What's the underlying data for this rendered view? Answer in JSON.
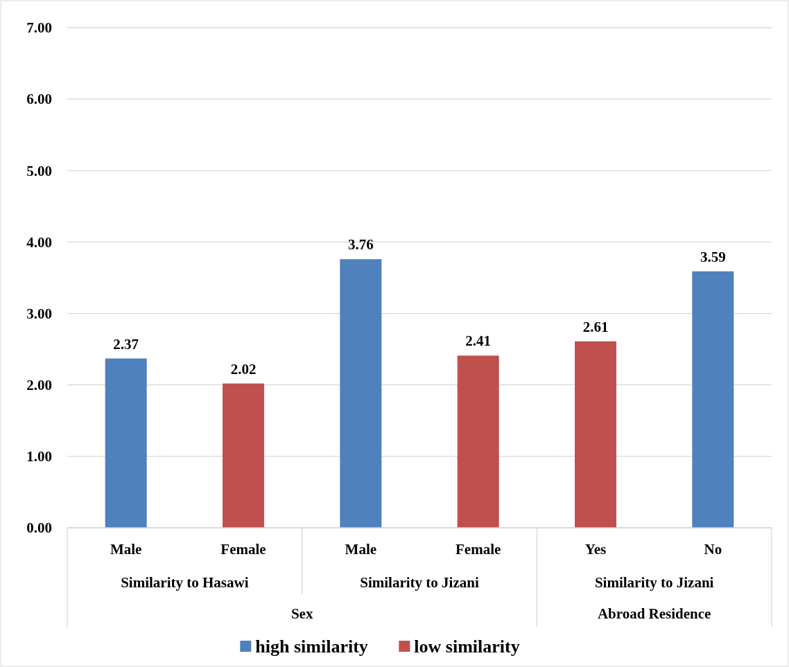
{
  "chart_data": {
    "type": "bar",
    "categories": [
      "Male",
      "Female",
      "Male",
      "Female",
      "Yes",
      "No"
    ],
    "series": [
      {
        "name": "high similarity",
        "color": "#4f81bd",
        "values": [
          2.37,
          null,
          3.76,
          null,
          null,
          3.59
        ]
      },
      {
        "name": "low similarity",
        "color": "#c0504d",
        "values": [
          null,
          2.02,
          null,
          2.41,
          2.61,
          null
        ]
      }
    ],
    "ylim": [
      0,
      7
    ],
    "yticks": [
      {
        "value": 0,
        "label": "0.00"
      },
      {
        "value": 1,
        "label": "1.00"
      },
      {
        "value": 2,
        "label": "2.00"
      },
      {
        "value": 3,
        "label": "3.00"
      },
      {
        "value": 4,
        "label": "4.00"
      },
      {
        "value": 5,
        "label": "5.00"
      },
      {
        "value": 6,
        "label": "6.00"
      },
      {
        "value": 7,
        "label": "7.00"
      }
    ],
    "grid": "y",
    "legend": "bottom",
    "data_labels": true,
    "annotations": [
      "Similarity to Hasawi",
      "Similarity to Jizani",
      "Similarity to Jizani",
      "Sex",
      "Abroad Residence"
    ]
  }
}
